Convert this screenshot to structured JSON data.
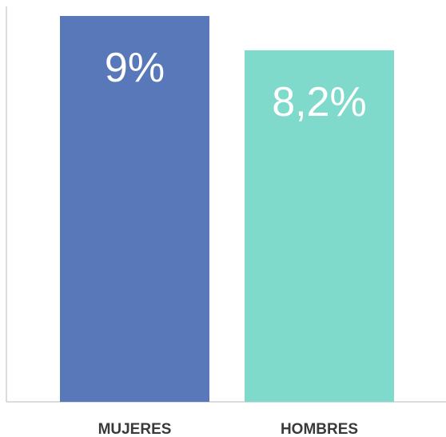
{
  "chart_data": {
    "type": "bar",
    "categories": [
      "MUJERES",
      "HOMBRES"
    ],
    "values": [
      9.0,
      8.2
    ],
    "value_labels": [
      "9%",
      "8,2%"
    ],
    "colors": [
      "#5878ba",
      "#7fdacb"
    ],
    "ylim": [
      0,
      9.0
    ],
    "grid": false,
    "legend": "none"
  }
}
